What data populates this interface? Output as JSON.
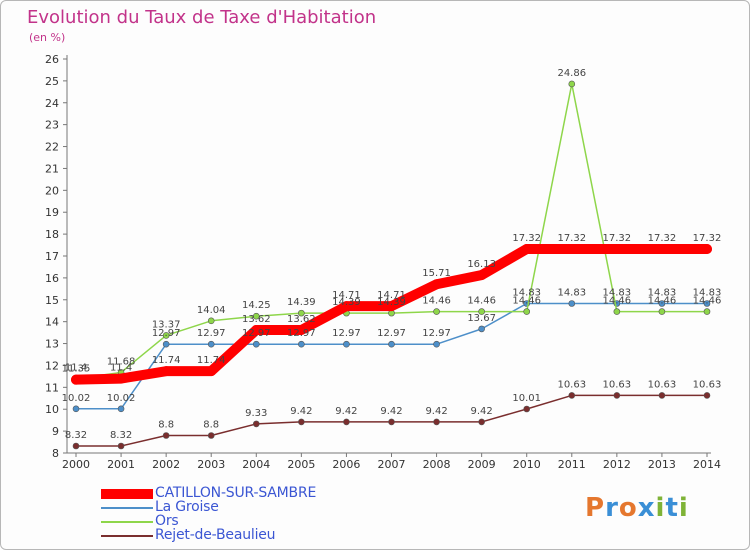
{
  "title": "Evolution du Taux de Taxe d'Habitation",
  "subtitle": "(en %)",
  "logo": {
    "text": "Proxiti",
    "letters": [
      "P",
      "r",
      "o",
      "x",
      "i",
      "t",
      "i"
    ],
    "colors": [
      "#e5772e",
      "#3a8fd6",
      "#e5772e",
      "#3a8fd6",
      "#7fb337",
      "#3a8fd6",
      "#7fb337"
    ]
  },
  "chart_data": {
    "type": "line",
    "x": [
      "2000",
      "2001",
      "2002",
      "2003",
      "2004",
      "2005",
      "2006",
      "2007",
      "2008",
      "2009",
      "2010",
      "2011",
      "2012",
      "2013",
      "2014"
    ],
    "ylim": [
      8,
      26
    ],
    "yticks": [
      8,
      9,
      10,
      11,
      12,
      13,
      14,
      15,
      16,
      17,
      18,
      19,
      20,
      21,
      22,
      23,
      24,
      25,
      26
    ],
    "grid": false,
    "legend_position": "bottom-left",
    "series": [
      {
        "name": "CATILLON-SUR-SAMBRE",
        "color": "#ff0000",
        "width": 10,
        "values": [
          11.35,
          11.4,
          11.74,
          11.74,
          13.62,
          13.62,
          14.71,
          14.71,
          15.71,
          16.13,
          17.32,
          17.32,
          17.32,
          17.32,
          17.32
        ],
        "labels": [
          "11.35",
          "11.4",
          "11.74",
          "11.74",
          "13.62",
          "13.62",
          "14.71",
          "14.71",
          "15.71",
          "16.13",
          "17.32",
          "17.32",
          "17.32",
          "17.32",
          "17.32"
        ]
      },
      {
        "name": "La Groise",
        "color": "#4d8fc9",
        "width": 1.5,
        "values": [
          10.02,
          10.02,
          12.97,
          12.97,
          12.97,
          12.97,
          12.97,
          12.97,
          12.97,
          13.67,
          14.83,
          14.83,
          14.83,
          14.83,
          14.83
        ],
        "labels": [
          "10.02",
          "10.02",
          "12.97",
          "12.97",
          "12.97",
          "12.97",
          "12.97",
          "12.97",
          "12.97",
          "13.67",
          "14.83",
          "14.83",
          "14.83",
          "14.83",
          "14.83"
        ]
      },
      {
        "name": "Ors",
        "color": "#8ed64a",
        "width": 1.5,
        "values": [
          11.4,
          11.68,
          13.37,
          14.04,
          14.25,
          14.39,
          14.39,
          14.39,
          14.46,
          14.46,
          14.46,
          24.86,
          14.46,
          14.46,
          14.46
        ],
        "labels": [
          "11.4",
          "11.68",
          "13.37",
          "14.04",
          "14.25",
          "14.39",
          "14.39",
          "14.39",
          "14.46",
          "14.46",
          "14.46",
          "24.86",
          "14.46",
          "14.46",
          "14.46"
        ]
      },
      {
        "name": "Rejet-de-Beaulieu",
        "color": "#7a2e2e",
        "width": 1.5,
        "values": [
          8.32,
          8.32,
          8.8,
          8.8,
          9.33,
          9.42,
          9.42,
          9.42,
          9.42,
          9.42,
          10.01,
          10.63,
          10.63,
          10.63,
          10.63
        ],
        "labels": [
          "8.32",
          "8.32",
          "8.8",
          "8.8",
          "9.33",
          "9.42",
          "9.42",
          "9.42",
          "9.42",
          "9.42",
          "10.01",
          "10.63",
          "10.63",
          "10.63",
          "10.63"
        ]
      }
    ]
  }
}
